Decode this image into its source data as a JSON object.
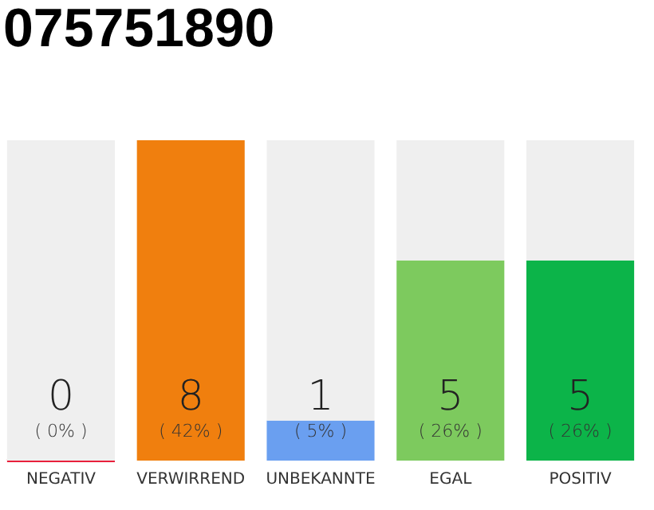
{
  "chart_data": {
    "type": "bar",
    "title": "075751890",
    "stacked": true,
    "tick_labels": "x",
    "ylim": [
      0,
      8
    ],
    "categories": [
      "NEGATIV",
      "VERWIRREND",
      "UNBEKANNTE",
      "EGAL",
      "POSITIV"
    ],
    "series": [
      {
        "values": [
          0,
          8,
          1,
          5,
          5
        ],
        "colors": [
          "#e8203c",
          "#f07f0e",
          "#6a9ff0",
          "#7dca5e",
          "#0cb449"
        ],
        "value_labels": [
          "0",
          "8",
          "1",
          "5",
          "5"
        ]
      },
      {
        "values": [
          8,
          0,
          7,
          3,
          3
        ],
        "color": "#efefef"
      }
    ],
    "annotations": [
      "( 0% )",
      "( 42% )",
      "( 5% )",
      "( 26% )",
      "( 26% )"
    ]
  }
}
